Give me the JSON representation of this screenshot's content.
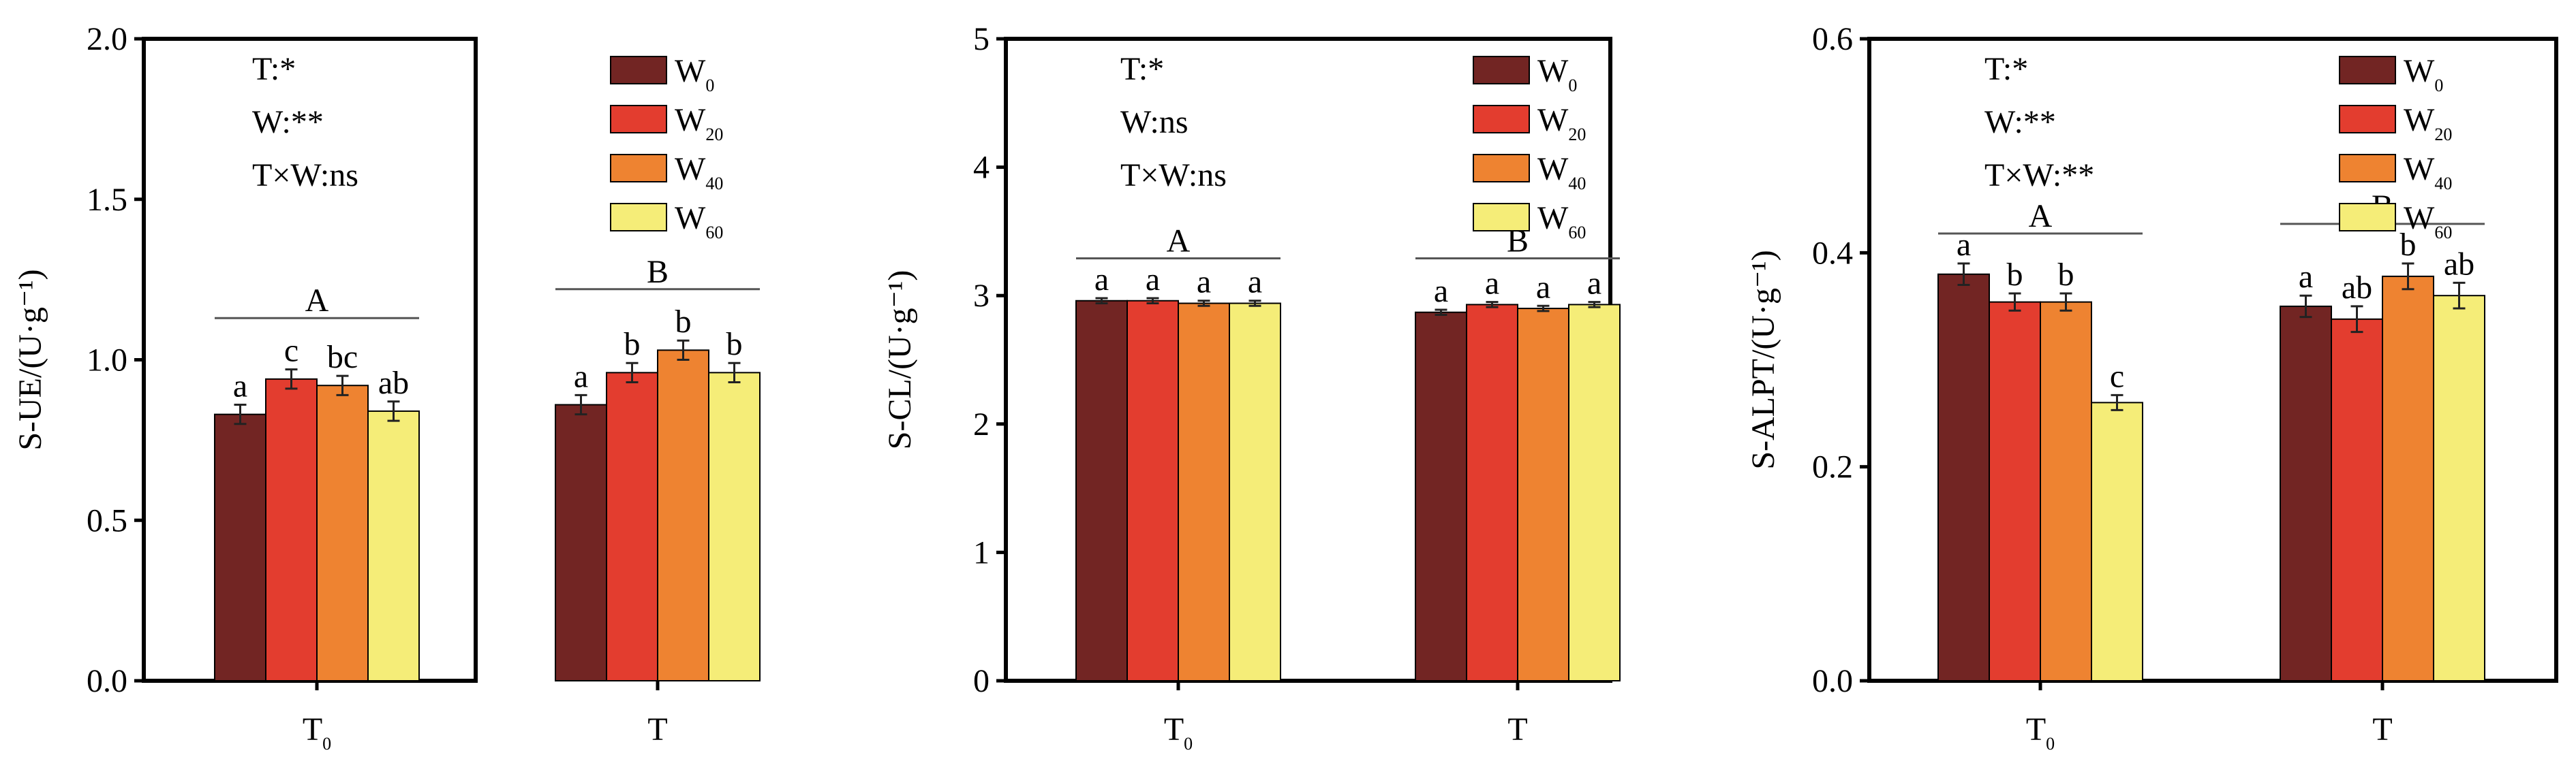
{
  "chart_data": [
    {
      "type": "bar",
      "ylabel": "S-UE/(U·g⁻¹)",
      "ylim": [
        0,
        2.0
      ],
      "yticks": [
        0.0,
        0.5,
        1.0,
        1.5,
        2.0
      ],
      "ytick_labels": [
        "0.0",
        "0.5",
        "1.0",
        "1.5",
        "2.0"
      ],
      "categories": [
        {
          "base": "T",
          "sub": "0"
        },
        {
          "base": "T",
          "sub": ""
        }
      ],
      "series": [
        {
          "name": "W",
          "sub": "0",
          "color": "#722523",
          "values": [
            0.83,
            0.86
          ],
          "errors": [
            0.03,
            0.03
          ],
          "letters": [
            "a",
            "a"
          ]
        },
        {
          "name": "W",
          "sub": "20",
          "color": "#e33d2f",
          "values": [
            0.94,
            0.96
          ],
          "errors": [
            0.03,
            0.03
          ],
          "letters": [
            "c",
            "b"
          ]
        },
        {
          "name": "W",
          "sub": "40",
          "color": "#ee8331",
          "values": [
            0.92,
            1.03
          ],
          "errors": [
            0.03,
            0.03
          ],
          "letters": [
            "bc",
            "b"
          ]
        },
        {
          "name": "W",
          "sub": "60",
          "color": "#f5ed78",
          "values": [
            0.84,
            0.96
          ],
          "errors": [
            0.03,
            0.03
          ],
          "letters": [
            "ab",
            "b"
          ]
        }
      ],
      "group_letters": [
        "A",
        "B"
      ],
      "group_line_y": [
        1.13,
        1.22
      ],
      "stats": [
        "T:*",
        "W:**",
        "T×W:ns"
      ]
    },
    {
      "type": "bar",
      "ylabel": "S-CL/(U·g⁻¹)",
      "ylim": [
        0,
        5
      ],
      "yticks": [
        0,
        1,
        2,
        3,
        4,
        5
      ],
      "ytick_labels": [
        "0",
        "1",
        "2",
        "3",
        "4",
        "5"
      ],
      "categories": [
        {
          "base": "T",
          "sub": "0"
        },
        {
          "base": "T",
          "sub": ""
        }
      ],
      "series": [
        {
          "name": "W",
          "sub": "0",
          "color": "#722523",
          "values": [
            2.96,
            2.87
          ],
          "errors": [
            0.02,
            0.02
          ],
          "letters": [
            "a",
            "a"
          ]
        },
        {
          "name": "W",
          "sub": "20",
          "color": "#e33d2f",
          "values": [
            2.96,
            2.93
          ],
          "errors": [
            0.02,
            0.02
          ],
          "letters": [
            "a",
            "a"
          ]
        },
        {
          "name": "W",
          "sub": "40",
          "color": "#ee8331",
          "values": [
            2.94,
            2.9
          ],
          "errors": [
            0.02,
            0.02
          ],
          "letters": [
            "a",
            "a"
          ]
        },
        {
          "name": "W",
          "sub": "60",
          "color": "#f5ed78",
          "values": [
            2.94,
            2.93
          ],
          "errors": [
            0.02,
            0.02
          ],
          "letters": [
            "a",
            "a"
          ]
        }
      ],
      "group_letters": [
        "A",
        "B"
      ],
      "group_line_y": [
        3.29,
        3.29
      ],
      "stats": [
        "T:*",
        "W:ns",
        "T×W:ns"
      ]
    },
    {
      "type": "bar",
      "ylabel": "S-ALPT/(U·g⁻¹)",
      "ylim": [
        0,
        0.6
      ],
      "yticks": [
        0.0,
        0.2,
        0.4,
        0.6
      ],
      "ytick_labels": [
        "0.0",
        "0.2",
        "0.4",
        "0.6"
      ],
      "categories": [
        {
          "base": "T",
          "sub": "0"
        },
        {
          "base": "T",
          "sub": ""
        }
      ],
      "series": [
        {
          "name": "W",
          "sub": "0",
          "color": "#722523",
          "values": [
            0.38,
            0.35
          ],
          "errors": [
            0.01,
            0.01
          ],
          "letters": [
            "a",
            "a"
          ]
        },
        {
          "name": "W",
          "sub": "20",
          "color": "#e33d2f",
          "values": [
            0.354,
            0.338
          ],
          "errors": [
            0.008,
            0.012
          ],
          "letters": [
            "b",
            "ab"
          ]
        },
        {
          "name": "W",
          "sub": "40",
          "color": "#ee8331",
          "values": [
            0.354,
            0.378
          ],
          "errors": [
            0.008,
            0.012
          ],
          "letters": [
            "b",
            "b"
          ]
        },
        {
          "name": "W",
          "sub": "60",
          "color": "#f5ed78",
          "values": [
            0.26,
            0.36
          ],
          "errors": [
            0.007,
            0.012
          ],
          "letters": [
            "c",
            "ab"
          ]
        }
      ],
      "group_letters": [
        "A",
        "B"
      ],
      "group_line_y": [
        0.418,
        0.427
      ],
      "stats": [
        "T:*",
        "W:**",
        "T×W:**"
      ]
    }
  ]
}
